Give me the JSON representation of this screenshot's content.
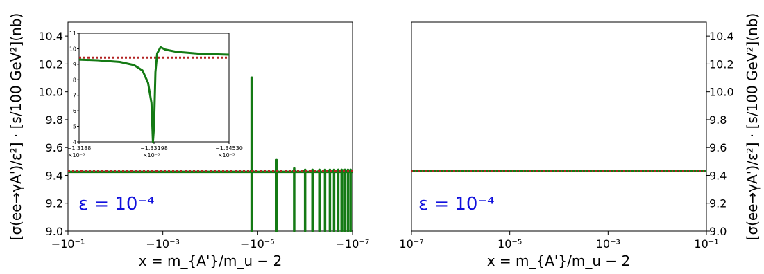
{
  "chart_data": [
    {
      "type": "line",
      "panel": "left",
      "xscale": "symlog-negative",
      "xlabel": "x = m_{A'}/m_u − 2",
      "ylabel": "[σ(ee→γA')/ε²] · [s/100 GeV²](nb)",
      "ylim": [
        9.0,
        10.5
      ],
      "yticks": [
        "9.0",
        "9.2",
        "9.4",
        "9.6",
        "9.8",
        "10.0",
        "10.2",
        "10.4"
      ],
      "xticks": [
        "−10⁻¹",
        "−10⁻³",
        "−10⁻⁵",
        "−10⁻⁷"
      ],
      "annotation": "ε = 10⁻⁴",
      "colors": {
        "line": "#147a14",
        "reference": "#b22222",
        "annotation": "#1010dd"
      },
      "series": [
        {
          "style": "solid",
          "baseline": 9.43,
          "spikes": [
            {
              "x": -1.332e-05,
              "peak": 10.1,
              "dip": 9.0
            },
            {
              "x": -4e-06,
              "peak": 9.51,
              "dip": 9.0
            },
            {
              "x": -1.7e-06,
              "peak": 9.45,
              "dip": 9.0
            },
            {
              "x": -1e-06,
              "peak": 9.44,
              "dip": 9.0
            },
            {
              "x": -7e-07,
              "peak": 9.44,
              "dip": 9.0
            },
            {
              "x": -5e-07,
              "peak": 9.44,
              "dip": 9.0
            },
            {
              "x": -3.8e-07,
              "peak": 9.44,
              "dip": 9.0
            },
            {
              "x": -3e-07,
              "peak": 9.44,
              "dip": 9.0
            },
            {
              "x": -2.45e-07,
              "peak": 9.44,
              "dip": 9.0
            },
            {
              "x": -2e-07,
              "peak": 9.44,
              "dip": 9.0
            },
            {
              "x": -1.7e-07,
              "peak": 9.44,
              "dip": 9.0
            },
            {
              "x": -1.45e-07,
              "peak": 9.44,
              "dip": 9.0
            },
            {
              "x": -1.25e-07,
              "peak": 9.44,
              "dip": 9.0
            },
            {
              "x": -1.1e-07,
              "peak": 9.44,
              "dip": 9.0
            }
          ]
        },
        {
          "style": "dotted",
          "value": 9.43
        }
      ],
      "inset": {
        "xticks": [
          "−1.3188",
          "−1.33198",
          "−1.34530"
        ],
        "xtick_exponent": "×10⁻⁵",
        "yticks": [
          "4",
          "5",
          "6",
          "7",
          "8",
          "9",
          "10",
          "11"
        ],
        "ylim": [
          4,
          11
        ],
        "reference": 9.43,
        "curve": [
          [
            -1.3188,
            9.3
          ],
          [
            -1.322,
            9.26
          ],
          [
            -1.326,
            9.15
          ],
          [
            -1.3285,
            8.95
          ],
          [
            -1.33,
            8.6
          ],
          [
            -1.331,
            7.8
          ],
          [
            -1.3316,
            6.5
          ],
          [
            -1.33185,
            4.0
          ],
          [
            -1.33205,
            5.0
          ],
          [
            -1.3323,
            8.5
          ],
          [
            -1.3326,
            9.7
          ],
          [
            -1.3332,
            10.1
          ],
          [
            -1.334,
            9.95
          ],
          [
            -1.336,
            9.8
          ],
          [
            -1.34,
            9.68
          ],
          [
            -1.3453,
            9.62
          ]
        ]
      }
    },
    {
      "type": "line",
      "panel": "right",
      "xscale": "log",
      "xlabel": "x = m_{A'}/m_u − 2",
      "ylabel": "[σ(ee→γA')/ε²] · [s/100 GeV²](nb)",
      "ylim": [
        9.0,
        10.5
      ],
      "yticks": [
        "9.0",
        "9.2",
        "9.4",
        "9.6",
        "9.8",
        "10.0",
        "10.2",
        "10.4"
      ],
      "xticks": [
        "10⁻⁷",
        "10⁻⁵",
        "10⁻³",
        "10⁻¹"
      ],
      "annotation": "ε = 10⁻⁴",
      "series": [
        {
          "style": "solid",
          "value": 9.43
        },
        {
          "style": "dotted",
          "value": 9.43
        }
      ]
    }
  ]
}
